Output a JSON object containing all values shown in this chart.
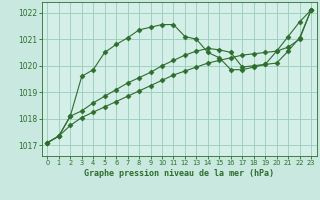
{
  "background_color": "#c8e8e0",
  "plot_bg_color": "#d4eee8",
  "grid_color": "#99ccbb",
  "line_color": "#2d6e2d",
  "title": "Graphe pression niveau de la mer (hPa)",
  "xlabel_ticks": [
    0,
    1,
    2,
    3,
    4,
    5,
    6,
    7,
    8,
    9,
    10,
    11,
    12,
    13,
    14,
    15,
    16,
    17,
    18,
    19,
    20,
    21,
    22,
    23
  ],
  "ylim": [
    1016.6,
    1022.4
  ],
  "xlim": [
    -0.5,
    23.5
  ],
  "yticks": [
    1017,
    1018,
    1019,
    1020,
    1021,
    1022
  ],
  "series": [
    {
      "x": [
        0,
        1,
        2,
        3,
        4,
        5,
        6,
        7,
        8,
        9,
        10,
        11,
        12,
        13,
        14,
        15,
        16,
        17,
        18,
        19,
        20,
        21,
        22,
        23
      ],
      "y": [
        1017.1,
        1017.35,
        1018.1,
        1019.6,
        1019.85,
        1020.5,
        1020.8,
        1021.05,
        1021.35,
        1021.45,
        1021.55,
        1021.55,
        1021.1,
        1021.0,
        1020.5,
        1020.3,
        1019.85,
        1019.85,
        1019.95,
        1020.05,
        1020.55,
        1021.1,
        1021.65,
        1022.1
      ]
    },
    {
      "x": [
        0,
        1,
        2,
        3,
        4,
        5,
        6,
        7,
        8,
        9,
        10,
        11,
        12,
        13,
        14,
        15,
        16,
        17,
        18,
        19,
        20,
        21,
        22,
        23
      ],
      "y": [
        1017.1,
        1017.35,
        1018.1,
        1018.3,
        1018.6,
        1018.85,
        1019.1,
        1019.35,
        1019.55,
        1019.75,
        1020.0,
        1020.2,
        1020.4,
        1020.55,
        1020.65,
        1020.6,
        1020.5,
        1019.95,
        1020.0,
        1020.05,
        1020.1,
        1020.55,
        1021.05,
        1022.1
      ]
    },
    {
      "x": [
        0,
        1,
        2,
        3,
        4,
        5,
        6,
        7,
        8,
        9,
        10,
        11,
        12,
        13,
        14,
        15,
        16,
        17,
        18,
        19,
        20,
        21,
        22,
        23
      ],
      "y": [
        1017.1,
        1017.35,
        1017.75,
        1018.05,
        1018.25,
        1018.45,
        1018.65,
        1018.85,
        1019.05,
        1019.25,
        1019.45,
        1019.65,
        1019.8,
        1019.95,
        1020.1,
        1020.2,
        1020.3,
        1020.4,
        1020.45,
        1020.5,
        1020.55,
        1020.7,
        1021.0,
        1022.1
      ]
    }
  ]
}
